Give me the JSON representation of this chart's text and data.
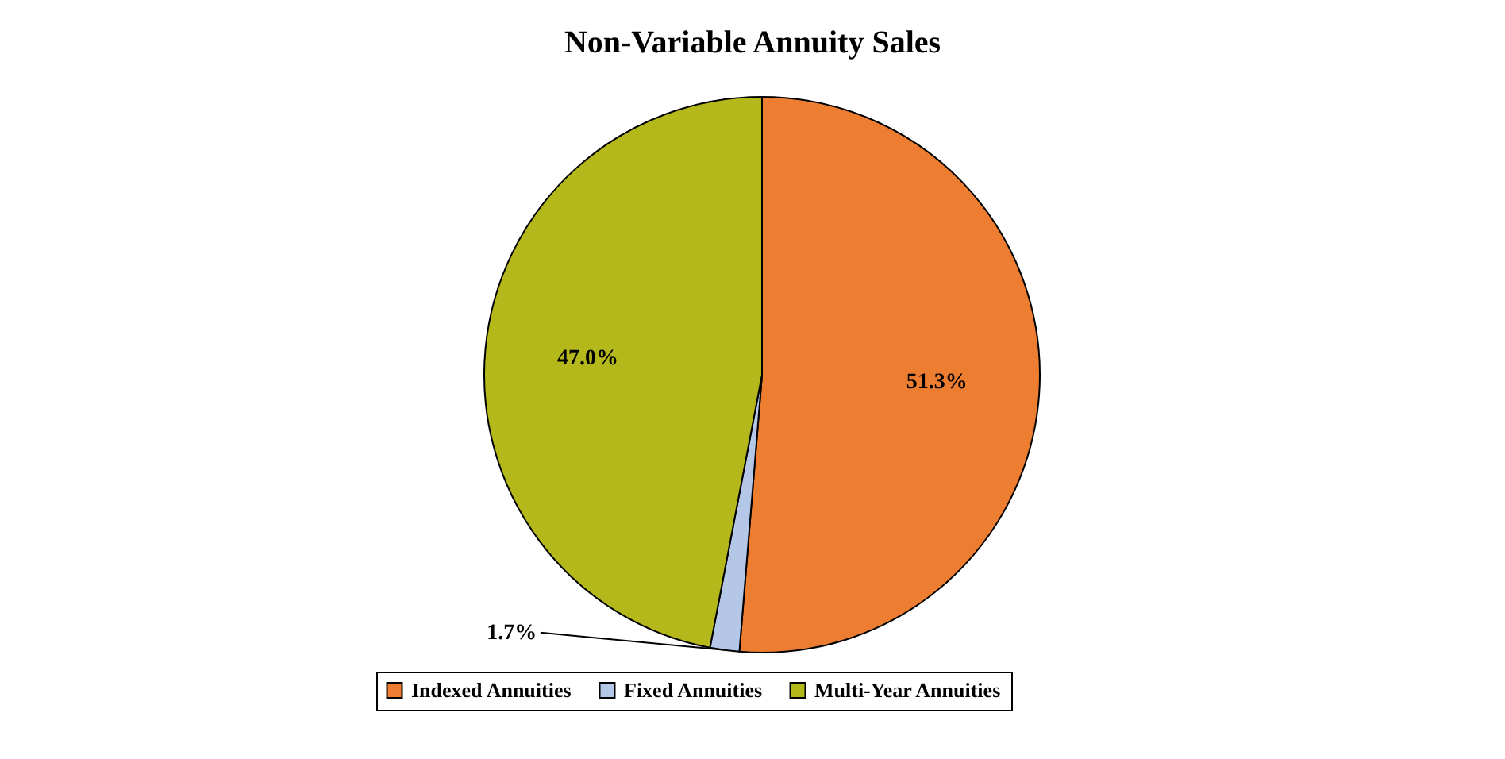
{
  "chart_data": {
    "type": "pie",
    "title": "Non-Variable Annuity Sales",
    "categories": [
      "Indexed Annuities",
      "Fixed Annuities",
      "Multi-Year Annuities"
    ],
    "values": [
      51.3,
      1.7,
      47.0
    ],
    "colors": [
      "#ed7d31",
      "#b4c7e7",
      "#b5b81a"
    ],
    "value_labels": [
      "51.3%",
      "1.7%",
      "47.0%"
    ],
    "legend": "bottom"
  }
}
